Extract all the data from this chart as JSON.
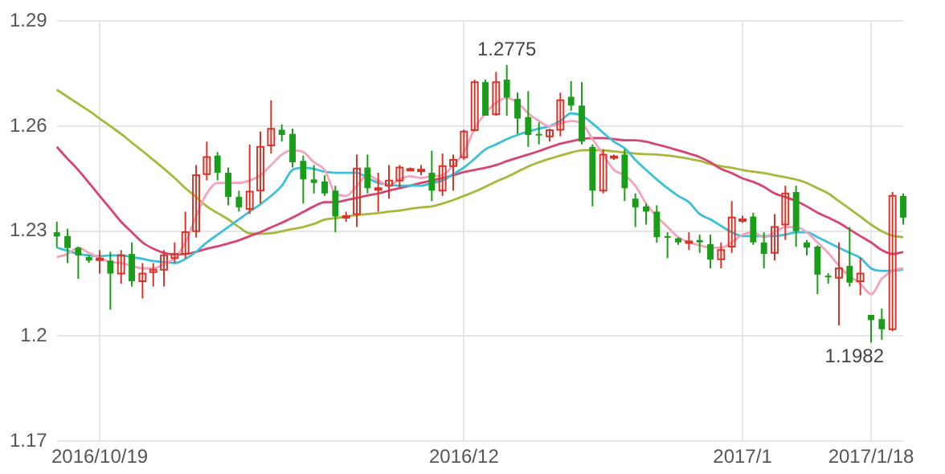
{
  "chart_data": {
    "type": "candlestick",
    "categories": [
      null,
      null,
      null,
      null,
      "2016/10/19",
      null,
      null,
      null,
      null,
      null,
      null,
      null,
      null,
      null,
      null,
      null,
      null,
      null,
      null,
      null,
      null,
      null,
      null,
      null,
      null,
      null,
      null,
      null,
      null,
      null,
      null,
      null,
      null,
      null,
      null,
      null,
      null,
      null,
      "2016/12",
      null,
      null,
      null,
      null,
      null,
      null,
      null,
      null,
      null,
      null,
      null,
      null,
      null,
      null,
      null,
      null,
      null,
      null,
      null,
      null,
      null,
      null,
      null,
      null,
      null,
      "2017/1",
      null,
      null,
      null,
      null,
      null,
      null,
      null,
      null,
      null,
      null,
      null,
      "2017/1/18",
      null,
      null,
      null
    ],
    "ohlc": [
      [
        1.2297,
        1.2327,
        1.2253,
        1.2285
      ],
      [
        1.2286,
        1.2307,
        1.2209,
        1.2252
      ],
      [
        1.2253,
        1.2256,
        1.2164,
        1.2231
      ],
      [
        1.2226,
        1.2232,
        1.221,
        1.2216
      ],
      [
        1.2219,
        1.2246,
        1.2179,
        1.2222
      ],
      [
        1.2216,
        1.2241,
        1.2076,
        1.2179
      ],
      [
        1.2179,
        1.2246,
        1.215,
        1.2231
      ],
      [
        1.2235,
        1.2268,
        1.2142,
        1.2157
      ],
      [
        1.2157,
        1.2209,
        1.2108,
        1.2179
      ],
      [
        1.2183,
        1.2209,
        1.2142,
        1.219
      ],
      [
        1.219,
        1.2246,
        1.2142,
        1.2231
      ],
      [
        1.2223,
        1.2268,
        1.2209,
        1.2235
      ],
      [
        1.2235,
        1.2356,
        1.2223,
        1.2297
      ],
      [
        1.23,
        1.2489,
        1.2282,
        1.246
      ],
      [
        1.2463,
        1.2556,
        1.2445,
        1.2512
      ],
      [
        1.2516,
        1.2526,
        1.2445,
        1.2467
      ],
      [
        1.2467,
        1.2482,
        1.2374,
        1.2398
      ],
      [
        1.2398,
        1.2416,
        1.2356,
        1.2368
      ],
      [
        1.2364,
        1.2548,
        1.2349,
        1.2413
      ],
      [
        1.2416,
        1.2585,
        1.2379,
        1.2541
      ],
      [
        1.2545,
        1.2674,
        1.2522,
        1.2593
      ],
      [
        1.259,
        1.2605,
        1.2556,
        1.2575
      ],
      [
        1.2578,
        1.2593,
        1.2482,
        1.2497
      ],
      [
        1.2501,
        1.2516,
        1.2379,
        1.2448
      ],
      [
        1.2448,
        1.2489,
        1.2408,
        1.2438
      ],
      [
        1.2442,
        1.246,
        1.2401,
        1.2408
      ],
      [
        1.2416,
        1.243,
        1.2297,
        1.2342
      ],
      [
        1.234,
        1.2356,
        1.2327,
        1.2343
      ],
      [
        1.2349,
        1.2519,
        1.2312,
        1.2479
      ],
      [
        1.2482,
        1.2519,
        1.2408,
        1.2423
      ],
      [
        1.2421,
        1.2467,
        1.2356,
        1.2423
      ],
      [
        1.243,
        1.2489,
        1.2393,
        1.2445
      ],
      [
        1.2445,
        1.2489,
        1.2423,
        1.2482
      ],
      [
        1.2477,
        1.2482,
        1.2474,
        1.2478
      ],
      [
        1.2474,
        1.2489,
        1.246,
        1.2476
      ],
      [
        1.2467,
        1.253,
        1.2386,
        1.2416
      ],
      [
        1.2416,
        1.2522,
        1.2401,
        1.2486
      ],
      [
        1.2486,
        1.2519,
        1.2416,
        1.2504
      ],
      [
        1.2511,
        1.259,
        1.2504,
        1.2585
      ],
      [
        1.2589,
        1.2733,
        1.2585,
        1.2726
      ],
      [
        1.2726,
        1.2733,
        1.263,
        1.263
      ],
      [
        1.2634,
        1.2755,
        1.263,
        1.2726
      ],
      [
        1.2733,
        1.2775,
        1.263,
        1.2682
      ],
      [
        1.2678,
        1.2696,
        1.2578,
        1.2622
      ],
      [
        1.2626,
        1.27,
        1.2541,
        1.2575
      ],
      [
        1.2578,
        1.2611,
        1.2548,
        1.2576
      ],
      [
        1.2571,
        1.2593,
        1.2556,
        1.2589
      ],
      [
        1.259,
        1.2696,
        1.2571,
        1.2674
      ],
      [
        1.2684,
        1.2729,
        1.2644,
        1.2659
      ],
      [
        1.2659,
        1.2726,
        1.2548,
        1.2556
      ],
      [
        1.2541,
        1.2548,
        1.2371,
        1.2416
      ],
      [
        1.2416,
        1.2534,
        1.2408,
        1.2519
      ],
      [
        1.2512,
        1.2519,
        1.2504,
        1.2514
      ],
      [
        1.2519,
        1.2534,
        1.2386,
        1.2423
      ],
      [
        1.2393,
        1.2408,
        1.2312,
        1.2368
      ],
      [
        1.2371,
        1.2379,
        1.2319,
        1.2356
      ],
      [
        1.2356,
        1.2374,
        1.2267,
        1.2283
      ],
      [
        1.2286,
        1.2297,
        1.2223,
        1.2284
      ],
      [
        1.228,
        1.2282,
        1.2261,
        1.2268
      ],
      [
        1.2268,
        1.2297,
        1.2246,
        1.2271
      ],
      [
        1.2275,
        1.229,
        1.2238,
        1.2268
      ],
      [
        1.2263,
        1.229,
        1.2194,
        1.2219
      ],
      [
        1.222,
        1.2268,
        1.2194,
        1.2246
      ],
      [
        1.2256,
        1.2386,
        1.2238,
        1.2339
      ],
      [
        1.2333,
        1.2344,
        1.2324,
        1.2334
      ],
      [
        1.2342,
        1.2353,
        1.2261,
        1.2268
      ],
      [
        1.2268,
        1.2297,
        1.2194,
        1.2235
      ],
      [
        1.2238,
        1.2349,
        1.2216,
        1.2312
      ],
      [
        1.2319,
        1.243,
        1.2275,
        1.2408
      ],
      [
        1.2412,
        1.243,
        1.2256,
        1.23
      ],
      [
        1.2268,
        1.2275,
        1.2231,
        1.2253
      ],
      [
        1.2256,
        1.226,
        1.212,
        1.2176
      ],
      [
        1.2173,
        1.218,
        1.215,
        1.2172
      ],
      [
        1.2167,
        1.2268,
        1.2031,
        1.2194
      ],
      [
        1.2201,
        1.2312,
        1.2142,
        1.2153
      ],
      [
        1.2157,
        1.2224,
        1.2117,
        1.2179
      ],
      [
        1.2061,
        1.2061,
        1.1982,
        1.2046
      ],
      [
        1.2049,
        1.2079,
        1.199,
        1.202
      ],
      [
        1.202,
        1.2412,
        1.2014,
        1.2401
      ],
      [
        1.2401,
        1.2408,
        1.2319,
        1.2339
      ]
    ],
    "colors": [
      "#1a9e1a",
      "#1a9e1a",
      "#1a9e1a",
      "#1a9e1a",
      "#d8352a",
      "#1a9e1a",
      "#d8352a",
      "#1a9e1a",
      "#d8352a",
      "#d8352a",
      "#d8352a",
      "#d8352a",
      "#d8352a",
      "#d8352a",
      "#d8352a",
      "#1a9e1a",
      "#1a9e1a",
      "#1a9e1a",
      "#d8352a",
      "#d8352a",
      "#d8352a",
      "#1a9e1a",
      "#1a9e1a",
      "#1a9e1a",
      "#1a9e1a",
      "#1a9e1a",
      "#1a9e1a",
      "#d8352a",
      "#d8352a",
      "#1a9e1a",
      "#d8352a",
      "#d8352a",
      "#d8352a",
      "#d8352a",
      "#d8352a",
      "#1a9e1a",
      "#d8352a",
      "#d8352a",
      "#d8352a",
      "#d8352a",
      "#1a9e1a",
      "#d8352a",
      "#1a9e1a",
      "#1a9e1a",
      "#1a9e1a",
      "#1a9e1a",
      "#d8352a",
      "#d8352a",
      "#1a9e1a",
      "#1a9e1a",
      "#1a9e1a",
      "#d8352a",
      "#d8352a",
      "#1a9e1a",
      "#1a9e1a",
      "#1a9e1a",
      "#1a9e1a",
      "#1a9e1a",
      "#1a9e1a",
      "#d8352a",
      "#1a9e1a",
      "#1a9e1a",
      "#d8352a",
      "#d8352a",
      "#d8352a",
      "#1a9e1a",
      "#1a9e1a",
      "#d8352a",
      "#d8352a",
      "#1a9e1a",
      "#1a9e1a",
      "#1a9e1a",
      "#1a9e1a",
      "#d8352a",
      "#1a9e1a",
      "#d8352a",
      "#1a9e1a",
      "#1a9e1a",
      "#d8352a",
      "#1a9e1a"
    ],
    "series": [
      {
        "type": "line",
        "color": "#f4a3bd",
        "values": [
          1.2226,
          1.2235,
          1.2253,
          1.2238,
          1.2224,
          1.2212,
          1.2209,
          1.2201,
          1.2194,
          1.2194,
          1.2206,
          1.2224,
          1.2268,
          1.2342,
          1.2408,
          1.2438,
          1.2438,
          1.2438,
          1.2445,
          1.246,
          1.2489,
          1.2519,
          1.2531,
          1.2526,
          1.2497,
          1.2475,
          1.2408,
          1.2401,
          1.243,
          1.246,
          1.2445,
          1.243,
          1.2448,
          1.2457,
          1.2452,
          1.2457,
          1.246,
          1.2489,
          1.2526,
          1.2593,
          1.2637,
          1.2667,
          1.2681,
          1.2667,
          1.2637,
          1.2615,
          1.26,
          1.2608,
          1.2615,
          1.2608,
          1.2563,
          1.2519,
          1.2475,
          1.246,
          1.243,
          1.2379,
          1.2342,
          1.2312,
          1.2283,
          1.2268,
          1.226,
          1.2253,
          1.2253,
          1.2268,
          1.229,
          1.2297,
          1.2283,
          1.2297,
          1.2312,
          1.2312,
          1.2297,
          1.2268,
          1.2238,
          1.2201,
          1.2172,
          1.215,
          1.212,
          1.2164,
          1.2187,
          1.2194
        ]
      },
      {
        "type": "line",
        "color": "#3cbfd8",
        "values": [
          1.2253,
          1.2244,
          1.2235,
          1.2231,
          1.2229,
          1.2231,
          1.2231,
          1.2226,
          1.2221,
          1.2215,
          1.2212,
          1.2209,
          1.2221,
          1.2241,
          1.2268,
          1.229,
          1.2312,
          1.2334,
          1.2356,
          1.2377,
          1.2401,
          1.243,
          1.2475,
          1.2481,
          1.2478,
          1.247,
          1.2467,
          1.2467,
          1.2467,
          1.2452,
          1.2438,
          1.2433,
          1.243,
          1.243,
          1.243,
          1.2438,
          1.2445,
          1.2463,
          1.2482,
          1.2507,
          1.2534,
          1.2548,
          1.2563,
          1.2575,
          1.2585,
          1.2593,
          1.26,
          1.2615,
          1.2637,
          1.263,
          1.2608,
          1.2581,
          1.2556,
          1.2537,
          1.2504,
          1.2475,
          1.2448,
          1.2423,
          1.2401,
          1.2383,
          1.2349,
          1.2334,
          1.2315,
          1.2297,
          1.2286,
          1.2286,
          1.2286,
          1.2286,
          1.229,
          1.2297,
          1.2297,
          1.2283,
          1.2268,
          1.2253,
          1.2238,
          1.2224,
          1.2194,
          1.2187,
          1.2187,
          1.2191
        ]
      },
      {
        "type": "line",
        "color": "#d8436f",
        "values": [
          1.2541,
          1.2507,
          1.2475,
          1.2438,
          1.2401,
          1.2364,
          1.2327,
          1.2297,
          1.2268,
          1.225,
          1.2238,
          1.2234,
          1.2235,
          1.2241,
          1.225,
          1.2257,
          1.2265,
          1.2274,
          1.2286,
          1.2297,
          1.2311,
          1.2324,
          1.2339,
          1.2355,
          1.2371,
          1.2383,
          1.2383,
          1.2389,
          1.2395,
          1.2402,
          1.2408,
          1.2416,
          1.2423,
          1.243,
          1.2438,
          1.2445,
          1.2452,
          1.246,
          1.2469,
          1.2475,
          1.2481,
          1.2489,
          1.25,
          1.251,
          1.2519,
          1.2529,
          1.254,
          1.255,
          1.2557,
          1.2563,
          1.2566,
          1.2566,
          1.2563,
          1.256,
          1.256,
          1.2556,
          1.2548,
          1.254,
          1.2531,
          1.2522,
          1.2512,
          1.2497,
          1.2478,
          1.2466,
          1.2451,
          1.2441,
          1.2427,
          1.2408,
          1.2398,
          1.2386,
          1.2371,
          1.2353,
          1.2339,
          1.2324,
          1.2305,
          1.2286,
          1.2268,
          1.2246,
          1.2235,
          1.2241
        ]
      },
      {
        "type": "line",
        "color": "#a9b73a",
        "values": [
          1.2704,
          1.2684,
          1.2664,
          1.2644,
          1.2622,
          1.26,
          1.2578,
          1.2553,
          1.2529,
          1.2504,
          1.2479,
          1.2452,
          1.2423,
          1.2398,
          1.2371,
          1.2352,
          1.2334,
          1.2312,
          1.2294,
          1.2293,
          1.2294,
          1.23,
          1.2306,
          1.2312,
          1.2321,
          1.2333,
          1.2337,
          1.2342,
          1.2346,
          1.2349,
          1.2352,
          1.2356,
          1.2359,
          1.2364,
          1.2368,
          1.2371,
          1.2379,
          1.2389,
          1.2401,
          1.2413,
          1.2427,
          1.2442,
          1.2455,
          1.247,
          1.2485,
          1.2497,
          1.2507,
          1.2516,
          1.2525,
          1.2531,
          1.2532,
          1.2531,
          1.2528,
          1.2525,
          1.2522,
          1.252,
          1.2519,
          1.2516,
          1.2512,
          1.2507,
          1.2501,
          1.2492,
          1.2486,
          1.2481,
          1.2475,
          1.247,
          1.2466,
          1.246,
          1.2454,
          1.2448,
          1.2438,
          1.2423,
          1.2408,
          1.2386,
          1.2364,
          1.2342,
          1.2319,
          1.23,
          1.2287,
          1.2283
        ]
      }
    ],
    "ylim": [
      1.17,
      1.29
    ],
    "yticks": [
      1.17,
      1.2,
      1.23,
      1.26,
      1.29
    ],
    "grid": true,
    "legend": false,
    "annotations": [
      {
        "text": "1.2775",
        "y": 1.2775
      },
      "1.1982"
    ]
  }
}
